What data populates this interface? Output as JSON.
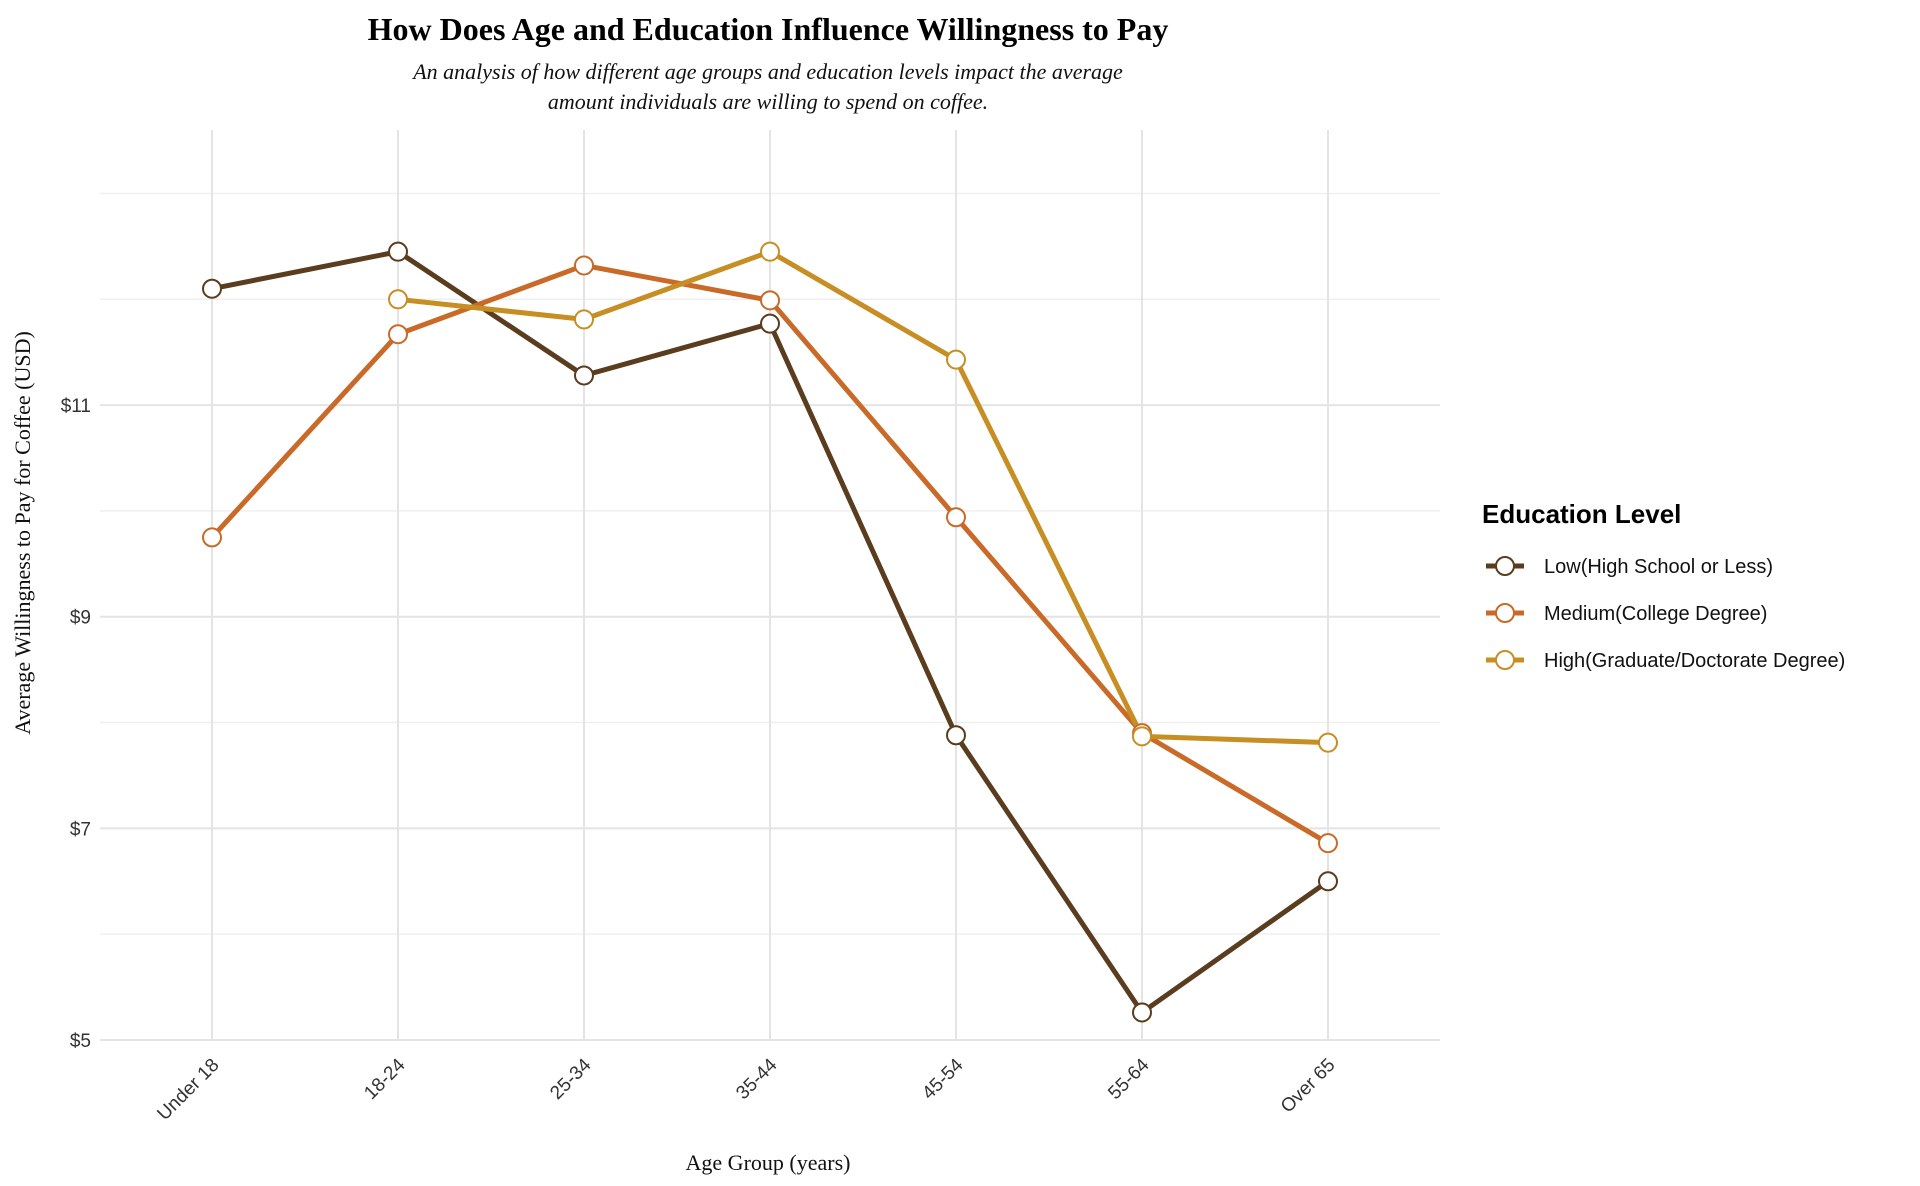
{
  "chart_data": {
    "type": "line",
    "title": "How Does Age and Education Influence Willingness to Pay",
    "subtitle_lines": [
      "An analysis of how different age groups and education levels impact the average",
      "amount individuals are willing to spend on coffee."
    ],
    "xlabel": "Age Group (years)",
    "ylabel": "Average Willingness to Pay for Coffee (USD)",
    "categories": [
      "Under 18",
      "18-24",
      "25-34",
      "35-44",
      "45-54",
      "55-64",
      "Over 65"
    ],
    "ylim": [
      5,
      13.6
    ],
    "yticks": [
      5,
      7,
      9,
      11
    ],
    "ytick_labels": [
      "$5",
      "$7",
      "$9",
      "$11"
    ],
    "grid": true,
    "legend_title": "Education Level",
    "legend_position": "right",
    "series": [
      {
        "name": "Low(High School or Less)",
        "color": "#5a3d1e",
        "values": [
          12.1,
          12.45,
          11.28,
          11.77,
          7.88,
          5.26,
          6.5
        ]
      },
      {
        "name": "Medium(College Degree)",
        "color": "#c96a28",
        "values": [
          9.75,
          11.67,
          12.32,
          11.99,
          9.94,
          7.9,
          6.86
        ]
      },
      {
        "name": "High(Graduate/Doctorate Degree)",
        "color": "#c68e23",
        "values": [
          null,
          12.0,
          11.81,
          12.45,
          11.43,
          7.87,
          7.81
        ]
      }
    ]
  }
}
